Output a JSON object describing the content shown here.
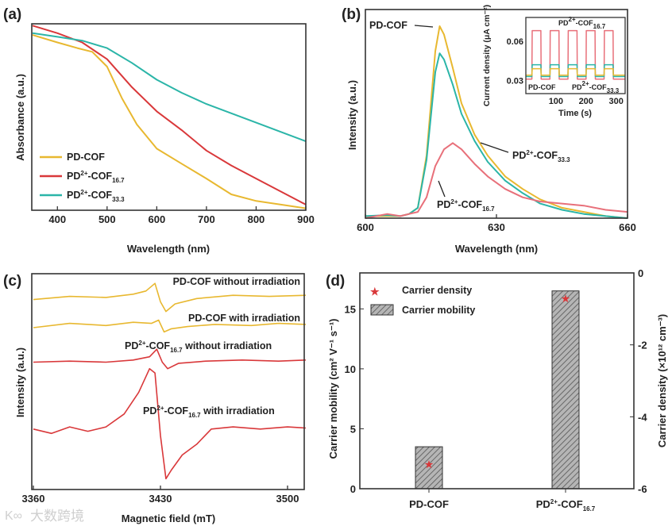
{
  "colors": {
    "yellow": "#e8b830",
    "red": "#d9383a",
    "teal": "#2bb5a8",
    "pink": "#e8707a",
    "axis": "#333333",
    "bar": "#8a8a8a"
  },
  "watermark": "大数跨境",
  "chart_data": [
    {
      "panel": "(a)",
      "type": "line",
      "xlabel": "Wavelength (nm)",
      "ylabel": "Absorbance (a.u.)",
      "xlim": [
        350,
        900
      ],
      "ylim": [
        0,
        1
      ],
      "xticks": [
        "400",
        "500",
        "600",
        "700",
        "800",
        "900"
      ],
      "legend": [
        {
          "base": "PD-COF",
          "sup": "",
          "mid": "",
          "sub": "",
          "color": "yellow"
        },
        {
          "base": "PD",
          "sup": "2+",
          "mid": "-COF",
          "sub": "16.7",
          "color": "red"
        },
        {
          "base": "PD",
          "sup": "2+",
          "mid": "-COF",
          "sub": "33.3",
          "color": "teal"
        }
      ],
      "series": [
        {
          "name": "PD-COF",
          "color": "yellow",
          "x": [
            350,
            400,
            440,
            470,
            500,
            530,
            560,
            600,
            650,
            700,
            750,
            800,
            850,
            900
          ],
          "y": [
            0.94,
            0.9,
            0.87,
            0.85,
            0.77,
            0.6,
            0.46,
            0.33,
            0.25,
            0.17,
            0.085,
            0.05,
            0.03,
            0.01
          ]
        },
        {
          "name": "PD2+-COF16.7",
          "color": "red",
          "x": [
            350,
            400,
            450,
            500,
            550,
            600,
            650,
            700,
            750,
            800,
            850,
            900
          ],
          "y": [
            0.99,
            0.95,
            0.9,
            0.81,
            0.66,
            0.53,
            0.43,
            0.32,
            0.24,
            0.17,
            0.1,
            0.03
          ]
        },
        {
          "name": "PD2+-COF33.3",
          "color": "teal",
          "x": [
            350,
            400,
            450,
            500,
            550,
            600,
            650,
            700,
            750,
            800,
            850,
            900
          ],
          "y": [
            0.95,
            0.93,
            0.91,
            0.87,
            0.79,
            0.7,
            0.63,
            0.57,
            0.52,
            0.47,
            0.42,
            0.37
          ]
        }
      ]
    },
    {
      "panel": "(b)",
      "type": "line",
      "xlabel": "Wavelength (nm)",
      "ylabel": "Intensity (a.u.)",
      "xlim": [
        600,
        660
      ],
      "ylim": [
        0,
        1
      ],
      "xticks": [
        "600",
        "630",
        "660"
      ],
      "annotations": [
        {
          "base": "PD-COF",
          "sup": "",
          "mid": "",
          "sub": ""
        },
        {
          "base": "PD",
          "sup": "2+",
          "mid": "-COF",
          "sub": "33.3"
        },
        {
          "base": "PD",
          "sup": "2+",
          "mid": "-COF",
          "sub": "16.7"
        }
      ],
      "series": [
        {
          "name": "PD-COF",
          "color": "yellow",
          "x": [
            600,
            605,
            608,
            610,
            612,
            614,
            616,
            617,
            618,
            620,
            622,
            625,
            628,
            632,
            636,
            640,
            645,
            650,
            655,
            660
          ],
          "y": [
            0.01,
            0.01,
            0.01,
            0.02,
            0.05,
            0.3,
            0.8,
            0.92,
            0.88,
            0.72,
            0.55,
            0.4,
            0.3,
            0.2,
            0.14,
            0.09,
            0.05,
            0.03,
            0.01,
            0.0
          ]
        },
        {
          "name": "PD2+-COF33.3",
          "color": "teal",
          "x": [
            600,
            605,
            608,
            610,
            612,
            614,
            616,
            617,
            618,
            620,
            622,
            625,
            628,
            632,
            636,
            640,
            645,
            650,
            655,
            660
          ],
          "y": [
            0.01,
            0.015,
            0.01,
            0.02,
            0.05,
            0.28,
            0.7,
            0.79,
            0.76,
            0.64,
            0.5,
            0.37,
            0.27,
            0.18,
            0.12,
            0.07,
            0.04,
            0.02,
            0.01,
            0.0
          ]
        },
        {
          "name": "PD2+-COF16.7",
          "color": "pink",
          "x": [
            600,
            605,
            608,
            610,
            612,
            614,
            616,
            618,
            620,
            622,
            625,
            628,
            632,
            636,
            640,
            645,
            650,
            655,
            660
          ],
          "y": [
            0.0,
            0.02,
            0.01,
            0.02,
            0.03,
            0.1,
            0.25,
            0.33,
            0.36,
            0.33,
            0.26,
            0.2,
            0.14,
            0.1,
            0.08,
            0.07,
            0.06,
            0.04,
            0.03
          ]
        }
      ],
      "inset": {
        "type": "line",
        "xlabel": "Time (s)",
        "ylabel": "Current density (μA cm⁻²)",
        "xlim": [
          0,
          330
        ],
        "ylim": [
          0.02,
          0.078
        ],
        "xticks": [
          "100",
          "200",
          "300"
        ],
        "yticks": [
          "0.03",
          "0.06"
        ],
        "labels": [
          {
            "base": "PD",
            "sup": "2+",
            "mid": "-COF",
            "sub": "16.7"
          },
          {
            "base": "PD-COF",
            "sup": "",
            "mid": "",
            "sub": ""
          },
          {
            "base": "PD",
            "sup": "2+",
            "mid": "-COF",
            "sub": "33.3"
          }
        ],
        "on_intervals": [
          [
            20,
            50
          ],
          [
            80,
            110
          ],
          [
            140,
            170
          ],
          [
            200,
            230
          ],
          [
            260,
            290
          ]
        ],
        "series": [
          {
            "name": "PD2+-COF16.7",
            "color": "pink",
            "off": 0.031,
            "on": 0.068
          },
          {
            "name": "PD2+-COF33.3",
            "color": "teal",
            "off": 0.033,
            "on": 0.042
          },
          {
            "name": "PD-COF",
            "color": "yellow",
            "off": 0.034,
            "on": 0.039
          }
        ]
      }
    },
    {
      "panel": "(c)",
      "type": "line",
      "xlabel": "Magnetic field (mT)",
      "ylabel": "Intensity (a.u.)",
      "xlim": [
        3360,
        3510
      ],
      "ylim": [
        0,
        10
      ],
      "xticks": [
        "3360",
        "3430",
        "3500"
      ],
      "trace_labels": [
        {
          "base": "PD-COF without irradiation",
          "sup": "",
          "mid": "",
          "sub": ""
        },
        {
          "base": "PD-COF with irradiation",
          "sup": "",
          "mid": "",
          "sub": ""
        },
        {
          "base": "PD",
          "sup": "2+",
          "mid": "-COF",
          "sub": "16.7",
          "tail": " without irradiation"
        },
        {
          "base": "PD",
          "sup": "2+",
          "mid": "-COF",
          "sub": "16.7",
          "tail": " with irradiation"
        }
      ],
      "series": [
        {
          "name": "PD-COF without irradiation",
          "color": "yellow",
          "x": [
            3360,
            3380,
            3400,
            3415,
            3422,
            3427,
            3430,
            3433,
            3438,
            3450,
            3470,
            3490,
            3510
          ],
          "y": [
            8.8,
            8.95,
            8.9,
            9.05,
            9.2,
            9.55,
            8.7,
            8.25,
            8.6,
            8.85,
            9.0,
            8.95,
            9.0
          ]
        },
        {
          "name": "PD-COF with irradiation",
          "color": "yellow",
          "x": [
            3360,
            3380,
            3400,
            3415,
            3425,
            3429,
            3432,
            3436,
            3445,
            3460,
            3480,
            3495,
            3510
          ],
          "y": [
            7.5,
            7.7,
            7.6,
            7.75,
            7.7,
            7.85,
            7.3,
            7.45,
            7.55,
            7.65,
            7.6,
            7.7,
            7.65
          ]
        },
        {
          "name": "PD2+-COF16.7 without irradiation",
          "color": "red",
          "x": [
            3360,
            3380,
            3400,
            3415,
            3424,
            3428,
            3431,
            3434,
            3440,
            3455,
            3475,
            3495,
            3510
          ],
          "y": [
            5.9,
            5.95,
            5.9,
            6.0,
            6.15,
            6.5,
            5.9,
            5.6,
            5.85,
            5.95,
            6.0,
            5.95,
            6.0
          ]
        },
        {
          "name": "PD2+-COF16.7 with irradiation",
          "color": "red",
          "x": [
            3360,
            3370,
            3380,
            3390,
            3400,
            3410,
            3418,
            3424,
            3427,
            3430,
            3433,
            3436,
            3442,
            3450,
            3458,
            3470,
            3485,
            3500,
            3510
          ],
          "y": [
            2.8,
            2.6,
            2.9,
            2.7,
            2.9,
            3.5,
            4.5,
            5.6,
            5.4,
            2.5,
            0.5,
            0.9,
            1.6,
            2.1,
            2.8,
            2.9,
            2.8,
            2.9,
            2.85
          ]
        }
      ]
    },
    {
      "panel": "(d)",
      "type": "bar",
      "categories": [
        {
          "base": "PD-COF",
          "sup": "",
          "mid": "",
          "sub": ""
        },
        {
          "base": "PD",
          "sup": "2+",
          "mid": "-COF",
          "sub": "16.7"
        }
      ],
      "series": [
        {
          "name": "Carrier mobility",
          "axis": "left",
          "values": [
            3.5,
            16.5
          ]
        },
        {
          "name": "Carrier density",
          "axis": "right",
          "values": [
            -5.3,
            -0.7
          ]
        }
      ],
      "ylabel_left": "Carrier mobility (cm² V⁻¹ s⁻¹)",
      "ylabel_right": "Carrier density (×10¹² cm⁻³)",
      "ylim_left": [
        0,
        18
      ],
      "ylim_right": [
        -6,
        0
      ],
      "yticks_left": [
        "0",
        "5",
        "10",
        "15"
      ],
      "yticks_right": [
        "0",
        "-2",
        "-4",
        "-6"
      ],
      "legend": [
        "Carrier density",
        "Carrier mobility"
      ]
    }
  ]
}
